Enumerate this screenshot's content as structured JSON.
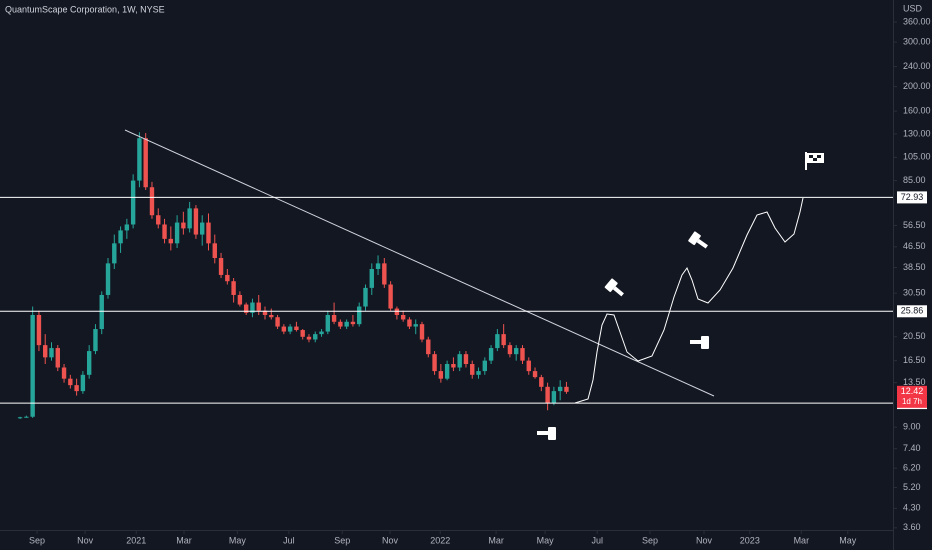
{
  "chart_data": {
    "type": "candlestick",
    "title": "QuantumScape Corporation, 1W, NYSE",
    "currency": "USD",
    "log_scale": true,
    "up_color": "#26a69a",
    "down_color": "#ef5350",
    "open": [
      9.8,
      9.85,
      9.9,
      25,
      19,
      17,
      18.5,
      15.5,
      14,
      13.2,
      12.5,
      14.5,
      18,
      22,
      30,
      40,
      48,
      54,
      57,
      85,
      125,
      80,
      62,
      57,
      50,
      48,
      58,
      55,
      66,
      52,
      58,
      48,
      42,
      36,
      34,
      30,
      27.5,
      25.5,
      28,
      26,
      25,
      24.5,
      22.5,
      21.5,
      22.5,
      21.8,
      20.5,
      20,
      21,
      21.5,
      25,
      23.5,
      22.5,
      23.5,
      23,
      27,
      32,
      38,
      40,
      33,
      26.5,
      25,
      24,
      22.5,
      23,
      20,
      17.5,
      15,
      14,
      16,
      15.5,
      17.5,
      16,
      14.5,
      15,
      16.5,
      18.5,
      21,
      19,
      17.5,
      18.5,
      16.5,
      15,
      14.2,
      13,
      11.2,
      12.5,
      13
    ],
    "high": [
      9.9,
      10,
      27,
      26,
      21,
      19.5,
      19,
      16,
      14.5,
      14,
      15,
      19,
      23,
      31,
      42,
      52,
      56,
      60,
      90,
      132,
      131,
      84,
      66,
      60,
      56,
      62,
      64,
      70,
      68,
      62,
      63,
      52,
      44,
      38,
      35,
      31,
      28,
      29,
      30,
      27,
      26.5,
      25,
      23,
      23,
      23.5,
      22,
      21,
      21.5,
      22,
      26,
      28,
      24,
      24,
      25,
      28,
      33,
      40,
      43,
      42,
      34,
      27,
      26,
      24.5,
      24,
      23.5,
      20.5,
      18,
      16,
      16.5,
      17,
      18,
      18,
      16.5,
      15.5,
      17,
      19,
      22,
      23,
      19.5,
      19,
      19,
      17,
      15.5,
      14.5,
      13.5,
      13,
      13.8,
      13.6
    ],
    "low": [
      9.7,
      9.8,
      9.8,
      18,
      16,
      16.5,
      15,
      13.5,
      12.8,
      12,
      12.2,
      14,
      17.5,
      21,
      29,
      38,
      44,
      50,
      55,
      80,
      78,
      60,
      55,
      48,
      45,
      46,
      52,
      53,
      50,
      47,
      45,
      40,
      35,
      33,
      28,
      27,
      25,
      24.5,
      25,
      24,
      24,
      22,
      21,
      21,
      21.5,
      20,
      19.5,
      19.5,
      20.5,
      21,
      23,
      22,
      22,
      22.5,
      22.5,
      26,
      30,
      36,
      32,
      26,
      24,
      23.5,
      22,
      21,
      19.5,
      17,
      14.5,
      13.5,
      13.8,
      15,
      15,
      15.5,
      14,
      14,
      14.5,
      16,
      18,
      18.5,
      17,
      16.5,
      16,
      14.5,
      14,
      12.5,
      10.5,
      11,
      11.5,
      12.2
    ],
    "close": [
      9.85,
      9.9,
      25,
      19,
      17,
      18.5,
      15.5,
      14,
      13.2,
      12.5,
      14.5,
      18,
      22,
      30,
      40,
      48,
      54,
      57,
      85,
      125,
      80,
      62,
      57,
      50,
      48,
      58,
      55,
      66,
      52,
      58,
      48,
      42,
      36,
      34,
      30,
      27.5,
      25.5,
      28,
      26,
      25,
      24.5,
      22.5,
      21.5,
      22.5,
      21.8,
      20.5,
      20,
      21,
      21.5,
      25,
      23.5,
      22.5,
      23.5,
      23,
      27,
      32,
      38,
      40,
      33,
      26.5,
      25,
      24,
      22.5,
      23,
      20,
      17.5,
      15,
      14,
      16,
      15.5,
      17.5,
      16,
      14.5,
      15,
      16.5,
      18.5,
      21,
      19,
      17.5,
      18.5,
      16.5,
      15,
      14.2,
      13,
      11.2,
      12.5,
      13,
      12.42
    ],
    "ylim": [
      3.53,
      440
    ],
    "yticks": [
      {
        "value": 3.6,
        "label": "3.60"
      },
      {
        "value": 4.3,
        "label": "4.30"
      },
      {
        "value": 5.2,
        "label": "5.20"
      },
      {
        "value": 6.2,
        "label": "6.20"
      },
      {
        "value": 7.4,
        "label": "7.40"
      },
      {
        "value": 9,
        "label": "9.00"
      },
      {
        "value": 13.5,
        "label": "13.50"
      },
      {
        "value": 16.5,
        "label": "16.50"
      },
      {
        "value": 20.5,
        "label": "20.50"
      },
      {
        "value": 30.5,
        "label": "30.50"
      },
      {
        "value": 38.5,
        "label": "38.50"
      },
      {
        "value": 46.5,
        "label": "46.50"
      },
      {
        "value": 56.5,
        "label": "56.50"
      },
      {
        "value": 85,
        "label": "85.00"
      },
      {
        "value": 105,
        "label": "105.00"
      },
      {
        "value": 130,
        "label": "130.00"
      },
      {
        "value": 160,
        "label": "160.00"
      },
      {
        "value": 200,
        "label": "200.00"
      },
      {
        "value": 240,
        "label": "240.00"
      },
      {
        "value": 300,
        "label": "300.00"
      },
      {
        "value": 360,
        "label": "360.00"
      }
    ],
    "xlim": [
      -3.2,
      139
    ],
    "xticks": [
      {
        "value": 2.7,
        "label": "Sep"
      },
      {
        "value": 10.35,
        "label": "Nov"
      },
      {
        "value": 18.5,
        "label": "2021"
      },
      {
        "value": 26.1,
        "label": "Mar"
      },
      {
        "value": 34.6,
        "label": "May"
      },
      {
        "value": 42.8,
        "label": "Jul"
      },
      {
        "value": 51.3,
        "label": "Sep"
      },
      {
        "value": 58.9,
        "label": "Nov"
      },
      {
        "value": 66.9,
        "label": "2022"
      },
      {
        "value": 75.8,
        "label": "Mar"
      },
      {
        "value": 83.6,
        "label": "May"
      },
      {
        "value": 91.9,
        "label": "Jul"
      },
      {
        "value": 100.3,
        "label": "Sep"
      },
      {
        "value": 108.9,
        "label": "Nov"
      },
      {
        "value": 116.2,
        "label": "2023"
      },
      {
        "value": 124.4,
        "label": "Mar"
      },
      {
        "value": 131.8,
        "label": "May"
      }
    ],
    "levels": [
      72.93,
      25.86,
      11.21
    ],
    "last_price": 12.42,
    "countdown": "1d 7h"
  }
}
